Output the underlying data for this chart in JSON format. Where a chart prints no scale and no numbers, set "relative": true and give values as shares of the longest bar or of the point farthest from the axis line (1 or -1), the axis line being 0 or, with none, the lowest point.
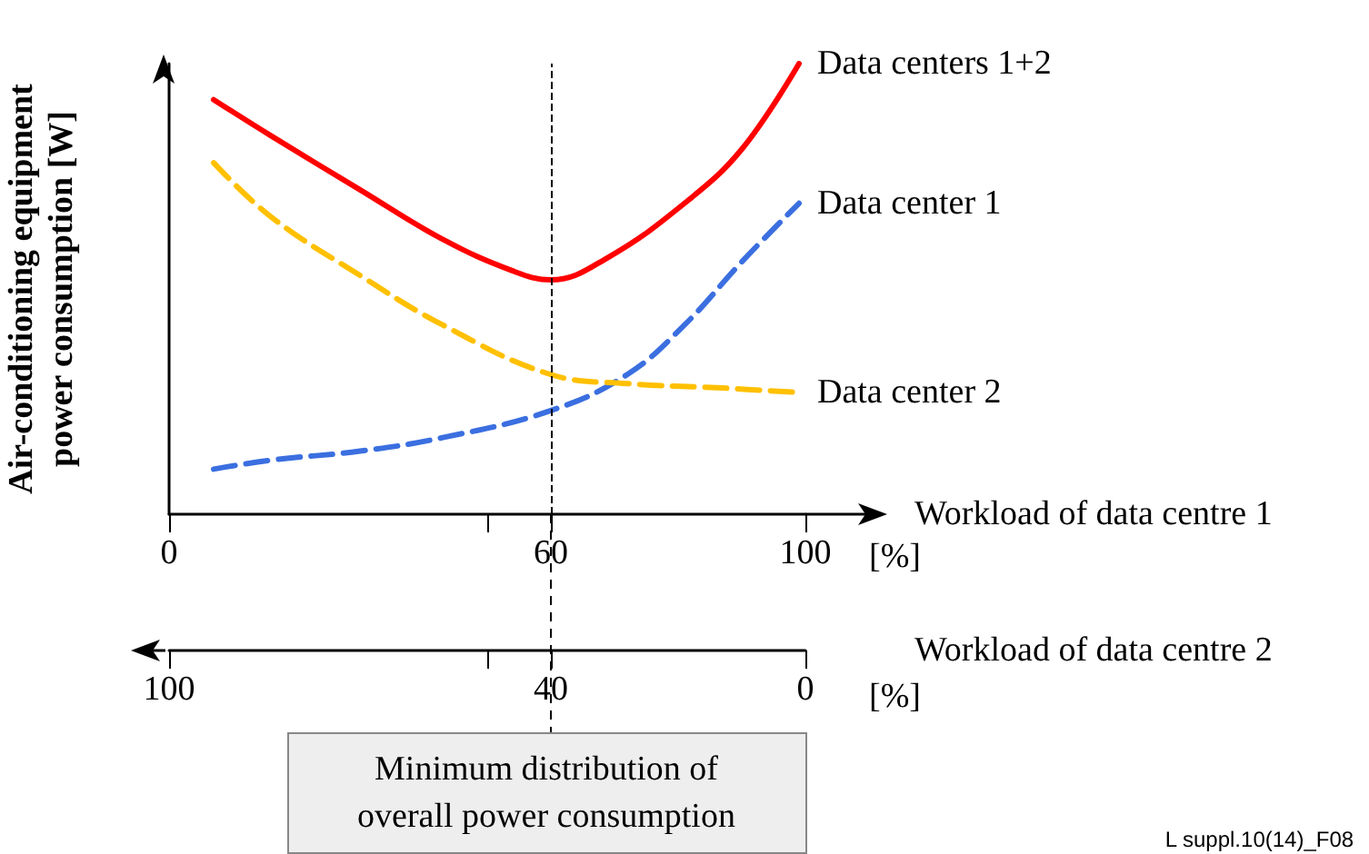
{
  "chart_data": {
    "type": "line",
    "relative": true,
    "ylabel": "Air-conditioning equipment\npower consumption [W]",
    "xlabel": "Workload of data centre 1",
    "x2label": "Workload of data centre 2",
    "xlim": [
      0,
      100
    ],
    "xticks": [
      0,
      {
        "value": 50,
        "label": null
      },
      60,
      100
    ],
    "x2lim": [
      100,
      0
    ],
    "x2ticks": [
      100,
      {
        "value": 50,
        "label": null
      },
      40,
      0
    ],
    "grid": false,
    "legend": false,
    "marker": "none",
    "tick_labels": "x",
    "series": [
      {
        "name": "Data centers 1+2",
        "color": "#ff0000",
        "line_style": "solid",
        "x": [
          7,
          16,
          30,
          43,
          54,
          60,
          69,
          81,
          90,
          99
        ],
        "values": [
          0.92,
          0.84,
          0.72,
          0.61,
          0.54,
          0.52,
          0.57,
          0.69,
          0.81,
          1
        ]
      },
      {
        "name": "Data center 1",
        "color": "#3b6fe0",
        "line_style": "dashed",
        "x": [
          7,
          16,
          30,
          43,
          60,
          72,
          81,
          90,
          99
        ],
        "values": [
          0.1,
          0.12,
          0.14,
          0.17,
          0.23,
          0.31,
          0.42,
          0.56,
          0.69
        ]
      },
      {
        "name": "Data center 2",
        "color": "#ffc000",
        "line_style": "dashed",
        "x": [
          7,
          16,
          30,
          43,
          60,
          72,
          87,
          99
        ],
        "values": [
          0.78,
          0.66,
          0.53,
          0.42,
          0.31,
          0.29,
          0.28,
          0.27
        ]
      }
    ],
    "ref_lines": [
      {
        "axis": "x",
        "value": 60,
        "color": "#000000",
        "line_style": "dashed"
      }
    ],
    "annotations": [
      "[%]",
      "[%]",
      "Minimum distribution of\noverall power consumption",
      "L suppl.10(14)_F08"
    ]
  }
}
